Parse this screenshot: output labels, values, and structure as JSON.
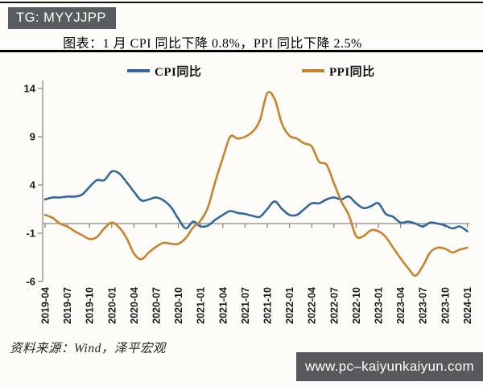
{
  "header": {
    "badge": "TG: MYYJJPP",
    "title": "图表：1 月 CPI 同比下降 0.8%，PPI 同比下降 2.5%"
  },
  "footer": {
    "source": "资料来源：Wind，泽平宏观",
    "watermark": "www.pc–kaiyunkaiyun.com"
  },
  "colors": {
    "cpi_line": "#33689E",
    "ppi_line": "#C9832B",
    "axis": "#8A8A8A",
    "label_text": "#1A1A1A",
    "badge_bg": "#595C5E",
    "watermark_bg": "#57595C"
  },
  "chart_data": {
    "type": "line",
    "title": "图表：1 月 CPI 同比下降 0.8%，PPI 同比下降 2.5%",
    "x": [
      "2019-04",
      "2019-05",
      "2019-06",
      "2019-07",
      "2019-08",
      "2019-09",
      "2019-10",
      "2019-11",
      "2019-12",
      "2020-01",
      "2020-02",
      "2020-03",
      "2020-04",
      "2020-05",
      "2020-06",
      "2020-07",
      "2020-08",
      "2020-09",
      "2020-10",
      "2020-11",
      "2020-12",
      "2021-01",
      "2021-02",
      "2021-03",
      "2021-04",
      "2021-05",
      "2021-06",
      "2021-07",
      "2021-08",
      "2021-09",
      "2021-10",
      "2021-11",
      "2021-12",
      "2022-01",
      "2022-02",
      "2022-03",
      "2022-04",
      "2022-05",
      "2022-06",
      "2022-07",
      "2022-08",
      "2022-09",
      "2022-10",
      "2022-11",
      "2022-12",
      "2023-01",
      "2023-02",
      "2023-03",
      "2023-04",
      "2023-05",
      "2023-06",
      "2023-07",
      "2023-08",
      "2023-09",
      "2023-10",
      "2023-11",
      "2023-12",
      "2024-01"
    ],
    "series": [
      {
        "name": "CPI同比",
        "color": "#33689E",
        "values": [
          2.5,
          2.7,
          2.7,
          2.8,
          2.8,
          3.0,
          3.8,
          4.5,
          4.5,
          5.4,
          5.2,
          4.3,
          3.3,
          2.4,
          2.5,
          2.7,
          2.4,
          1.7,
          0.5,
          -0.5,
          0.2,
          -0.3,
          -0.2,
          0.4,
          0.9,
          1.3,
          1.1,
          1.0,
          0.8,
          0.7,
          1.5,
          2.3,
          1.5,
          0.9,
          0.9,
          1.5,
          2.1,
          2.1,
          2.5,
          2.7,
          2.5,
          2.8,
          2.1,
          1.6,
          1.8,
          2.1,
          1.0,
          0.7,
          0.1,
          0.2,
          0.0,
          -0.3,
          0.1,
          0.0,
          -0.2,
          -0.5,
          -0.3,
          -0.8
        ]
      },
      {
        "name": "PPI同比",
        "color": "#C9832B",
        "values": [
          0.9,
          0.6,
          0.0,
          -0.3,
          -0.8,
          -1.2,
          -1.6,
          -1.4,
          -0.5,
          0.1,
          -0.4,
          -1.5,
          -3.1,
          -3.7,
          -3.0,
          -2.4,
          -2.0,
          -2.1,
          -2.1,
          -1.5,
          -0.4,
          0.3,
          1.7,
          4.4,
          6.8,
          9.0,
          8.8,
          9.0,
          9.5,
          10.7,
          13.5,
          12.9,
          10.3,
          9.1,
          8.8,
          8.3,
          8.0,
          6.4,
          6.1,
          4.2,
          2.3,
          0.9,
          -1.3,
          -1.3,
          -0.7,
          -0.8,
          -1.4,
          -2.5,
          -3.6,
          -4.6,
          -5.4,
          -4.4,
          -3.0,
          -2.5,
          -2.6,
          -3.0,
          -2.7,
          -2.5
        ]
      }
    ],
    "y_ticks": [
      14,
      9,
      4,
      -1,
      -6
    ],
    "x_tick_labels": [
      "2019-04",
      "2019-07",
      "2019-10",
      "2020-01",
      "2020-04",
      "2020-07",
      "2020-10",
      "2021-01",
      "2021-04",
      "2021-07",
      "2021-10",
      "2022-01",
      "2022-04",
      "2022-07",
      "2022-10",
      "2023-01",
      "2023-04",
      "2023-07",
      "2023-10",
      "2024-01"
    ],
    "ylim": [
      -6,
      14
    ],
    "grid": false,
    "legend_position": "top",
    "zero_line": true
  }
}
